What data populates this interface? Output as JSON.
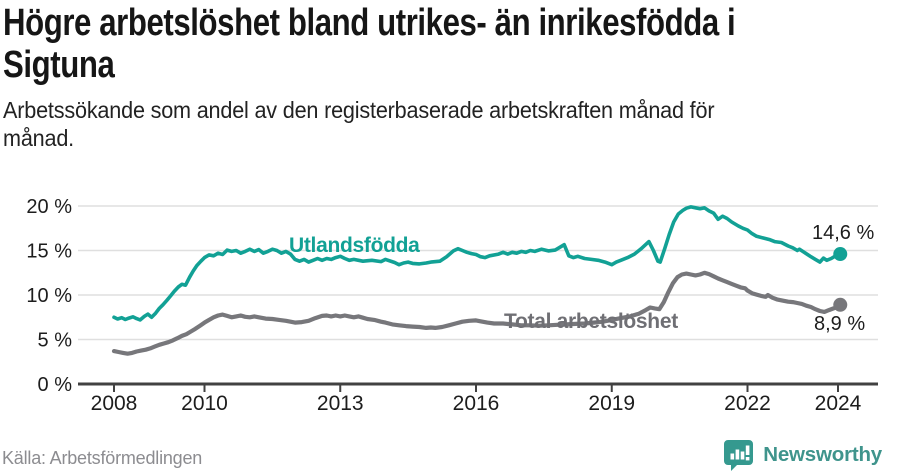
{
  "header": {
    "title_lines": [
      "Högre arbetslöshet bland utrikes- än inrikesfödda i",
      "Sigtuna"
    ],
    "subtitle_lines": [
      "Arbetssökande som andel av den registerbaserade arbetskraften månad för",
      "månad."
    ]
  },
  "footer": {
    "source": "Källa: Arbetsförmedlingen",
    "brand": "Newsworthy"
  },
  "colors": {
    "accent_teal": "#12a195",
    "line_gray": "#77777b",
    "series_label_gray": "#6f6f74",
    "text_dark": "#1d1d1d",
    "grid": "#dfdfdf",
    "axis": "#414141",
    "source_gray": "#8c8c90",
    "logo_teal": "#35998f",
    "brand_text_teal": "#3f948c"
  },
  "chart_data": {
    "type": "line",
    "title": "Högre arbetslöshet bland utrikes- än inrikesfödda i Sigtuna",
    "subtitle": "Arbetssökande som andel av den registerbaserade arbetskraften månad för månad.",
    "xlabel": "",
    "ylabel": "",
    "grid": "horizontal",
    "legend": "inline-labels",
    "xlim": [
      2007.6,
      2024.9
    ],
    "ylim": [
      0,
      22.3
    ],
    "x_ticks": [
      2008,
      2010,
      2013,
      2016,
      2019,
      2022,
      2024
    ],
    "x_tick_labels": [
      "2008",
      "2010",
      "2013",
      "2016",
      "2019",
      "2022",
      "2024"
    ],
    "y_ticks": [
      0,
      5,
      10,
      15,
      20
    ],
    "y_tick_labels": [
      "0 %",
      "5 %",
      "10 %",
      "15 %",
      "20 %"
    ],
    "series": [
      {
        "name": "Utlandsfödda",
        "color": "#12a195",
        "end_label": "14,6 %",
        "end_value": 14.6,
        "points": [
          [
            2008.0,
            7.5
          ],
          [
            2008.08,
            7.3
          ],
          [
            2008.17,
            7.45
          ],
          [
            2008.25,
            7.25
          ],
          [
            2008.33,
            7.4
          ],
          [
            2008.42,
            7.55
          ],
          [
            2008.5,
            7.35
          ],
          [
            2008.58,
            7.2
          ],
          [
            2008.67,
            7.6
          ],
          [
            2008.75,
            7.85
          ],
          [
            2008.83,
            7.5
          ],
          [
            2008.92,
            7.95
          ],
          [
            2009.0,
            8.5
          ],
          [
            2009.08,
            8.9
          ],
          [
            2009.17,
            9.4
          ],
          [
            2009.25,
            9.9
          ],
          [
            2009.33,
            10.4
          ],
          [
            2009.42,
            10.9
          ],
          [
            2009.5,
            11.2
          ],
          [
            2009.58,
            11.1
          ],
          [
            2009.67,
            12.0
          ],
          [
            2009.75,
            12.7
          ],
          [
            2009.83,
            13.3
          ],
          [
            2009.92,
            13.8
          ],
          [
            2010.0,
            14.2
          ],
          [
            2010.1,
            14.5
          ],
          [
            2010.2,
            14.4
          ],
          [
            2010.3,
            14.7
          ],
          [
            2010.4,
            14.55
          ],
          [
            2010.5,
            15.05
          ],
          [
            2010.6,
            14.9
          ],
          [
            2010.7,
            15.0
          ],
          [
            2010.8,
            14.7
          ],
          [
            2010.9,
            14.9
          ],
          [
            2011.0,
            15.15
          ],
          [
            2011.1,
            14.9
          ],
          [
            2011.2,
            15.1
          ],
          [
            2011.3,
            14.7
          ],
          [
            2011.4,
            14.9
          ],
          [
            2011.5,
            15.15
          ],
          [
            2011.6,
            15.0
          ],
          [
            2011.7,
            14.7
          ],
          [
            2011.8,
            14.9
          ],
          [
            2011.9,
            14.6
          ],
          [
            2012.0,
            14.0
          ],
          [
            2012.1,
            13.8
          ],
          [
            2012.2,
            14.0
          ],
          [
            2012.3,
            13.7
          ],
          [
            2012.4,
            13.9
          ],
          [
            2012.5,
            14.1
          ],
          [
            2012.6,
            13.9
          ],
          [
            2012.7,
            14.1
          ],
          [
            2012.8,
            14.0
          ],
          [
            2012.9,
            14.2
          ],
          [
            2013.0,
            14.35
          ],
          [
            2013.1,
            14.1
          ],
          [
            2013.2,
            13.9
          ],
          [
            2013.3,
            14.0
          ],
          [
            2013.5,
            13.8
          ],
          [
            2013.7,
            13.9
          ],
          [
            2013.9,
            13.75
          ],
          [
            2014.0,
            14.0
          ],
          [
            2014.2,
            13.65
          ],
          [
            2014.3,
            13.4
          ],
          [
            2014.4,
            13.6
          ],
          [
            2014.5,
            13.7
          ],
          [
            2014.6,
            13.55
          ],
          [
            2014.75,
            13.5
          ],
          [
            2014.9,
            13.6
          ],
          [
            2015.0,
            13.7
          ],
          [
            2015.2,
            13.8
          ],
          [
            2015.35,
            14.3
          ],
          [
            2015.5,
            14.95
          ],
          [
            2015.6,
            15.2
          ],
          [
            2015.7,
            15.0
          ],
          [
            2015.8,
            14.8
          ],
          [
            2015.9,
            14.65
          ],
          [
            2016.0,
            14.55
          ],
          [
            2016.1,
            14.3
          ],
          [
            2016.2,
            14.2
          ],
          [
            2016.3,
            14.4
          ],
          [
            2016.5,
            14.6
          ],
          [
            2016.6,
            14.8
          ],
          [
            2016.7,
            14.6
          ],
          [
            2016.8,
            14.8
          ],
          [
            2016.9,
            14.7
          ],
          [
            2017.0,
            14.9
          ],
          [
            2017.1,
            14.8
          ],
          [
            2017.2,
            15.0
          ],
          [
            2017.3,
            14.9
          ],
          [
            2017.45,
            15.15
          ],
          [
            2017.6,
            14.95
          ],
          [
            2017.75,
            15.05
          ],
          [
            2017.95,
            15.65
          ],
          [
            2018.05,
            14.4
          ],
          [
            2018.15,
            14.2
          ],
          [
            2018.25,
            14.35
          ],
          [
            2018.4,
            14.1
          ],
          [
            2018.55,
            14.0
          ],
          [
            2018.7,
            13.9
          ],
          [
            2018.85,
            13.7
          ],
          [
            2019.0,
            13.4
          ],
          [
            2019.1,
            13.7
          ],
          [
            2019.2,
            13.9
          ],
          [
            2019.35,
            14.2
          ],
          [
            2019.5,
            14.6
          ],
          [
            2019.65,
            15.2
          ],
          [
            2019.82,
            16.0
          ],
          [
            2019.92,
            15.0
          ],
          [
            2020.02,
            13.8
          ],
          [
            2020.07,
            13.7
          ],
          [
            2020.17,
            15.2
          ],
          [
            2020.27,
            16.8
          ],
          [
            2020.37,
            18.2
          ],
          [
            2020.47,
            19.1
          ],
          [
            2020.57,
            19.5
          ],
          [
            2020.65,
            19.75
          ],
          [
            2020.75,
            19.9
          ],
          [
            2020.85,
            19.8
          ],
          [
            2020.95,
            19.7
          ],
          [
            2021.05,
            19.8
          ],
          [
            2021.15,
            19.45
          ],
          [
            2021.25,
            19.2
          ],
          [
            2021.35,
            18.5
          ],
          [
            2021.45,
            18.85
          ],
          [
            2021.55,
            18.6
          ],
          [
            2021.65,
            18.2
          ],
          [
            2021.8,
            17.75
          ],
          [
            2021.9,
            17.5
          ],
          [
            2022.0,
            17.3
          ],
          [
            2022.1,
            16.9
          ],
          [
            2022.2,
            16.6
          ],
          [
            2022.35,
            16.4
          ],
          [
            2022.5,
            16.2
          ],
          [
            2022.6,
            16.0
          ],
          [
            2022.75,
            15.9
          ],
          [
            2022.9,
            15.5
          ],
          [
            2023.0,
            15.3
          ],
          [
            2023.1,
            15.0
          ],
          [
            2023.15,
            15.15
          ],
          [
            2023.25,
            14.8
          ],
          [
            2023.4,
            14.3
          ],
          [
            2023.5,
            14.0
          ],
          [
            2023.6,
            13.7
          ],
          [
            2023.68,
            14.15
          ],
          [
            2023.75,
            13.9
          ],
          [
            2023.85,
            14.1
          ],
          [
            2023.95,
            14.4
          ],
          [
            2024.05,
            14.6
          ]
        ]
      },
      {
        "name": "Total arbetslöshet",
        "color": "#77777b",
        "end_label": "8,9 %",
        "end_value": 8.9,
        "points": [
          [
            2008.0,
            3.7
          ],
          [
            2008.1,
            3.6
          ],
          [
            2008.2,
            3.5
          ],
          [
            2008.3,
            3.4
          ],
          [
            2008.4,
            3.5
          ],
          [
            2008.5,
            3.65
          ],
          [
            2008.6,
            3.75
          ],
          [
            2008.7,
            3.85
          ],
          [
            2008.8,
            4.0
          ],
          [
            2008.9,
            4.2
          ],
          [
            2009.0,
            4.4
          ],
          [
            2009.1,
            4.55
          ],
          [
            2009.2,
            4.7
          ],
          [
            2009.3,
            4.9
          ],
          [
            2009.4,
            5.15
          ],
          [
            2009.5,
            5.4
          ],
          [
            2009.6,
            5.6
          ],
          [
            2009.7,
            5.9
          ],
          [
            2009.8,
            6.2
          ],
          [
            2009.9,
            6.55
          ],
          [
            2010.0,
            6.9
          ],
          [
            2010.1,
            7.2
          ],
          [
            2010.2,
            7.5
          ],
          [
            2010.3,
            7.7
          ],
          [
            2010.4,
            7.8
          ],
          [
            2010.5,
            7.65
          ],
          [
            2010.6,
            7.5
          ],
          [
            2010.7,
            7.6
          ],
          [
            2010.8,
            7.7
          ],
          [
            2010.9,
            7.55
          ],
          [
            2011.0,
            7.5
          ],
          [
            2011.1,
            7.6
          ],
          [
            2011.2,
            7.5
          ],
          [
            2011.35,
            7.35
          ],
          [
            2011.5,
            7.3
          ],
          [
            2011.65,
            7.2
          ],
          [
            2011.8,
            7.1
          ],
          [
            2011.9,
            7.0
          ],
          [
            2012.0,
            6.9
          ],
          [
            2012.15,
            6.95
          ],
          [
            2012.3,
            7.1
          ],
          [
            2012.45,
            7.4
          ],
          [
            2012.6,
            7.65
          ],
          [
            2012.7,
            7.7
          ],
          [
            2012.8,
            7.6
          ],
          [
            2012.9,
            7.7
          ],
          [
            2013.0,
            7.6
          ],
          [
            2013.1,
            7.7
          ],
          [
            2013.2,
            7.6
          ],
          [
            2013.3,
            7.5
          ],
          [
            2013.4,
            7.6
          ],
          [
            2013.5,
            7.45
          ],
          [
            2013.6,
            7.3
          ],
          [
            2013.75,
            7.2
          ],
          [
            2013.9,
            7.0
          ],
          [
            2014.0,
            6.9
          ],
          [
            2014.15,
            6.7
          ],
          [
            2014.3,
            6.6
          ],
          [
            2014.45,
            6.5
          ],
          [
            2014.6,
            6.45
          ],
          [
            2014.75,
            6.4
          ],
          [
            2014.9,
            6.3
          ],
          [
            2015.0,
            6.35
          ],
          [
            2015.1,
            6.3
          ],
          [
            2015.25,
            6.4
          ],
          [
            2015.4,
            6.6
          ],
          [
            2015.55,
            6.8
          ],
          [
            2015.7,
            7.0
          ],
          [
            2015.85,
            7.1
          ],
          [
            2016.0,
            7.15
          ],
          [
            2016.1,
            7.05
          ],
          [
            2016.25,
            6.9
          ],
          [
            2016.4,
            6.8
          ],
          [
            2016.6,
            6.8
          ],
          [
            2016.8,
            6.7
          ],
          [
            2017.0,
            6.6
          ],
          [
            2017.2,
            6.6
          ],
          [
            2017.4,
            6.55
          ],
          [
            2017.6,
            6.6
          ],
          [
            2017.8,
            6.65
          ],
          [
            2018.0,
            6.7
          ],
          [
            2018.2,
            6.75
          ],
          [
            2018.4,
            6.8
          ],
          [
            2018.6,
            6.9
          ],
          [
            2018.8,
            7.0
          ],
          [
            2019.0,
            7.2
          ],
          [
            2019.2,
            7.4
          ],
          [
            2019.4,
            7.6
          ],
          [
            2019.6,
            7.9
          ],
          [
            2019.75,
            8.3
          ],
          [
            2019.85,
            8.6
          ],
          [
            2019.95,
            8.5
          ],
          [
            2020.05,
            8.4
          ],
          [
            2020.15,
            9.2
          ],
          [
            2020.25,
            10.3
          ],
          [
            2020.35,
            11.3
          ],
          [
            2020.45,
            12.0
          ],
          [
            2020.55,
            12.3
          ],
          [
            2020.65,
            12.4
          ],
          [
            2020.75,
            12.3
          ],
          [
            2020.85,
            12.2
          ],
          [
            2020.95,
            12.3
          ],
          [
            2021.05,
            12.5
          ],
          [
            2021.15,
            12.35
          ],
          [
            2021.25,
            12.1
          ],
          [
            2021.35,
            11.85
          ],
          [
            2021.45,
            11.65
          ],
          [
            2021.55,
            11.45
          ],
          [
            2021.65,
            11.25
          ],
          [
            2021.75,
            11.05
          ],
          [
            2021.85,
            10.85
          ],
          [
            2021.95,
            10.75
          ],
          [
            2022.0,
            10.5
          ],
          [
            2022.1,
            10.2
          ],
          [
            2022.2,
            10.05
          ],
          [
            2022.3,
            9.9
          ],
          [
            2022.4,
            9.8
          ],
          [
            2022.45,
            10.0
          ],
          [
            2022.55,
            9.7
          ],
          [
            2022.65,
            9.5
          ],
          [
            2022.8,
            9.35
          ],
          [
            2022.9,
            9.25
          ],
          [
            2023.0,
            9.2
          ],
          [
            2023.1,
            9.1
          ],
          [
            2023.2,
            9.0
          ],
          [
            2023.3,
            8.8
          ],
          [
            2023.4,
            8.65
          ],
          [
            2023.5,
            8.4
          ],
          [
            2023.6,
            8.2
          ],
          [
            2023.7,
            8.1
          ],
          [
            2023.8,
            8.3
          ],
          [
            2023.9,
            8.5
          ],
          [
            2024.0,
            8.7
          ],
          [
            2024.05,
            8.9
          ]
        ]
      }
    ]
  }
}
